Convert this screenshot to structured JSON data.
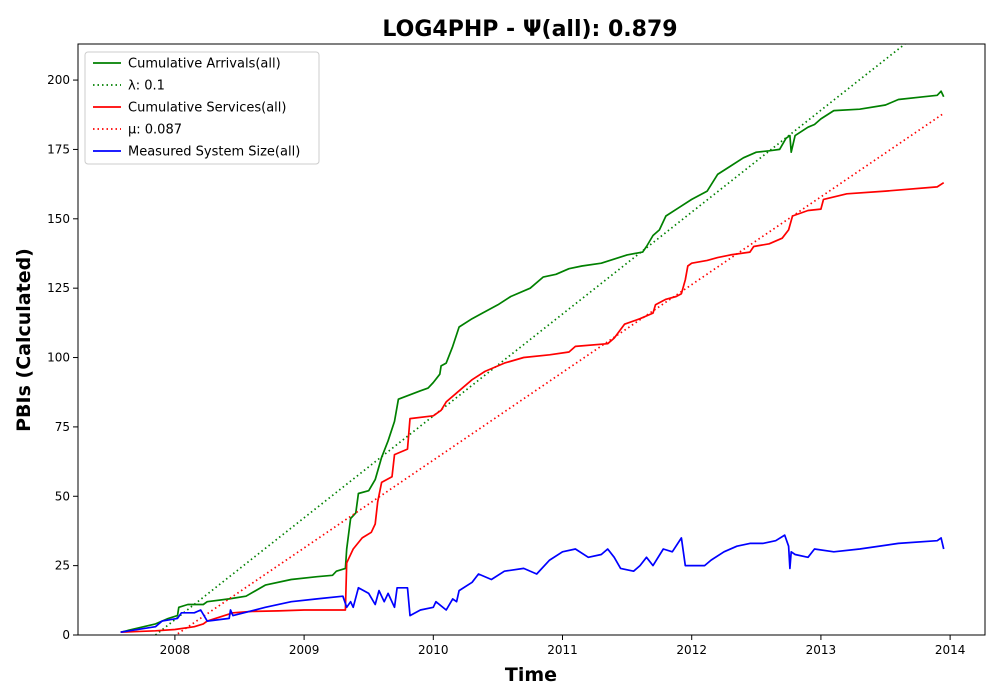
{
  "chart_data": {
    "type": "line",
    "title": "LOG4PHP -  Ψ(all): 0.879",
    "xlabel": "Time",
    "ylabel": "PBIs (Calculated)",
    "xlim": [
      2007.25,
      2014.27
    ],
    "ylim": [
      0,
      213
    ],
    "x_ticks": [
      {
        "value": 2008,
        "label": "2008"
      },
      {
        "value": 2009,
        "label": "2009"
      },
      {
        "value": 2010,
        "label": "2010"
      },
      {
        "value": 2011,
        "label": "2011"
      },
      {
        "value": 2012,
        "label": "2012"
      },
      {
        "value": 2013,
        "label": "2013"
      },
      {
        "value": 2014,
        "label": "2014"
      }
    ],
    "y_ticks": [
      {
        "value": 0,
        "label": "0"
      },
      {
        "value": 25,
        "label": "25"
      },
      {
        "value": 50,
        "label": "50"
      },
      {
        "value": 75,
        "label": "75"
      },
      {
        "value": 100,
        "label": "100"
      },
      {
        "value": 125,
        "label": "125"
      },
      {
        "value": 150,
        "label": "150"
      },
      {
        "value": 175,
        "label": "175"
      },
      {
        "value": 200,
        "label": "200"
      }
    ],
    "grid": false,
    "legend_position": "top-left",
    "series": [
      {
        "name": "Cumulative Arrivals(all)",
        "color": "#008000",
        "style": "solid",
        "points": [
          [
            2007.58,
            1
          ],
          [
            2007.85,
            4
          ],
          [
            2007.95,
            6
          ],
          [
            2008.02,
            7
          ],
          [
            2008.03,
            10
          ],
          [
            2008.1,
            11
          ],
          [
            2008.22,
            11
          ],
          [
            2008.25,
            12
          ],
          [
            2008.42,
            13
          ],
          [
            2008.55,
            14
          ],
          [
            2008.7,
            18
          ],
          [
            2008.9,
            20
          ],
          [
            2009.1,
            21
          ],
          [
            2009.22,
            21.5
          ],
          [
            2009.25,
            23
          ],
          [
            2009.32,
            24
          ],
          [
            2009.33,
            31
          ],
          [
            2009.36,
            42
          ],
          [
            2009.4,
            44
          ],
          [
            2009.42,
            51
          ],
          [
            2009.5,
            52
          ],
          [
            2009.55,
            56
          ],
          [
            2009.6,
            64
          ],
          [
            2009.65,
            70
          ],
          [
            2009.7,
            77
          ],
          [
            2009.73,
            85
          ],
          [
            2009.9,
            88
          ],
          [
            2009.96,
            89
          ],
          [
            2010.0,
            91
          ],
          [
            2010.05,
            94
          ],
          [
            2010.06,
            97
          ],
          [
            2010.1,
            98
          ],
          [
            2010.15,
            104
          ],
          [
            2010.2,
            111
          ],
          [
            2010.3,
            114
          ],
          [
            2010.38,
            116
          ],
          [
            2010.5,
            119
          ],
          [
            2010.6,
            122
          ],
          [
            2010.75,
            125
          ],
          [
            2010.85,
            129
          ],
          [
            2010.95,
            130
          ],
          [
            2011.05,
            132
          ],
          [
            2011.15,
            133
          ],
          [
            2011.3,
            134
          ],
          [
            2011.5,
            137
          ],
          [
            2011.62,
            138
          ],
          [
            2011.65,
            140
          ],
          [
            2011.7,
            144
          ],
          [
            2011.75,
            146
          ],
          [
            2011.8,
            151
          ],
          [
            2011.9,
            154
          ],
          [
            2012.0,
            157
          ],
          [
            2012.12,
            160
          ],
          [
            2012.2,
            166
          ],
          [
            2012.3,
            169
          ],
          [
            2012.4,
            172
          ],
          [
            2012.5,
            174
          ],
          [
            2012.6,
            174.5
          ],
          [
            2012.68,
            175
          ],
          [
            2012.73,
            179
          ],
          [
            2012.76,
            180
          ],
          [
            2012.77,
            174
          ],
          [
            2012.8,
            180
          ],
          [
            2012.9,
            183
          ],
          [
            2012.95,
            184
          ],
          [
            2013.0,
            186
          ],
          [
            2013.1,
            189
          ],
          [
            2013.3,
            189.5
          ],
          [
            2013.5,
            191
          ],
          [
            2013.6,
            193
          ],
          [
            2013.8,
            194
          ],
          [
            2013.9,
            194.5
          ],
          [
            2013.93,
            196
          ],
          [
            2013.95,
            194
          ]
        ]
      },
      {
        "name": "λ: 0.1",
        "color": "#008000",
        "style": "dotted",
        "points": [
          [
            2007.85,
            0
          ],
          [
            2013.65,
            213
          ]
        ]
      },
      {
        "name": "Cumulative Services(all)",
        "color": "#ff0000",
        "style": "solid",
        "points": [
          [
            2007.58,
            1
          ],
          [
            2007.85,
            1.5
          ],
          [
            2008.0,
            2
          ],
          [
            2008.15,
            3
          ],
          [
            2008.22,
            4
          ],
          [
            2008.25,
            5
          ],
          [
            2008.45,
            8
          ],
          [
            2008.6,
            8.5
          ],
          [
            2008.8,
            8.7
          ],
          [
            2009.0,
            9
          ],
          [
            2009.1,
            9
          ],
          [
            2009.32,
            9
          ],
          [
            2009.33,
            26
          ],
          [
            2009.35,
            28
          ],
          [
            2009.38,
            31
          ],
          [
            2009.45,
            35
          ],
          [
            2009.52,
            37
          ],
          [
            2009.55,
            40
          ],
          [
            2009.57,
            48
          ],
          [
            2009.6,
            55
          ],
          [
            2009.68,
            57
          ],
          [
            2009.7,
            65
          ],
          [
            2009.8,
            67
          ],
          [
            2009.82,
            78
          ],
          [
            2010.0,
            79
          ],
          [
            2010.06,
            81
          ],
          [
            2010.1,
            84
          ],
          [
            2010.2,
            88
          ],
          [
            2010.3,
            92
          ],
          [
            2010.4,
            95
          ],
          [
            2010.55,
            98
          ],
          [
            2010.7,
            100
          ],
          [
            2010.9,
            101
          ],
          [
            2011.05,
            102
          ],
          [
            2011.1,
            104
          ],
          [
            2011.35,
            105
          ],
          [
            2011.4,
            107
          ],
          [
            2011.48,
            112
          ],
          [
            2011.6,
            114
          ],
          [
            2011.7,
            116
          ],
          [
            2011.72,
            119
          ],
          [
            2011.8,
            121
          ],
          [
            2011.88,
            122
          ],
          [
            2011.92,
            123
          ],
          [
            2011.95,
            128
          ],
          [
            2011.97,
            133
          ],
          [
            2012.0,
            134
          ],
          [
            2012.12,
            135
          ],
          [
            2012.2,
            136
          ],
          [
            2012.3,
            137
          ],
          [
            2012.45,
            138
          ],
          [
            2012.48,
            140
          ],
          [
            2012.6,
            141
          ],
          [
            2012.7,
            143
          ],
          [
            2012.75,
            146
          ],
          [
            2012.78,
            151
          ],
          [
            2012.9,
            153
          ],
          [
            2013.0,
            153.5
          ],
          [
            2013.02,
            157
          ],
          [
            2013.2,
            159
          ],
          [
            2013.5,
            160
          ],
          [
            2013.9,
            161.5
          ],
          [
            2013.95,
            163
          ]
        ]
      },
      {
        "name": "μ: 0.087",
        "color": "#ff0000",
        "style": "dotted",
        "points": [
          [
            2007.85,
            -5
          ],
          [
            2013.95,
            188
          ]
        ]
      },
      {
        "name": "Measured System Size(all)",
        "color": "#0000ff",
        "style": "solid",
        "points": [
          [
            2007.58,
            1
          ],
          [
            2007.85,
            3
          ],
          [
            2007.9,
            5
          ],
          [
            2008.02,
            6
          ],
          [
            2008.05,
            8
          ],
          [
            2008.15,
            8
          ],
          [
            2008.2,
            9
          ],
          [
            2008.25,
            5
          ],
          [
            2008.42,
            6
          ],
          [
            2008.43,
            9
          ],
          [
            2008.45,
            7
          ],
          [
            2008.7,
            10
          ],
          [
            2008.9,
            12
          ],
          [
            2009.1,
            13
          ],
          [
            2009.3,
            14
          ],
          [
            2009.33,
            10
          ],
          [
            2009.36,
            12
          ],
          [
            2009.38,
            10
          ],
          [
            2009.42,
            17
          ],
          [
            2009.5,
            15
          ],
          [
            2009.55,
            11
          ],
          [
            2009.58,
            16
          ],
          [
            2009.62,
            12
          ],
          [
            2009.65,
            15
          ],
          [
            2009.7,
            10
          ],
          [
            2009.72,
            17
          ],
          [
            2009.8,
            17
          ],
          [
            2009.82,
            7
          ],
          [
            2009.9,
            9
          ],
          [
            2010.0,
            10
          ],
          [
            2010.02,
            12
          ],
          [
            2010.1,
            9
          ],
          [
            2010.15,
            13
          ],
          [
            2010.18,
            12
          ],
          [
            2010.2,
            16
          ],
          [
            2010.3,
            19
          ],
          [
            2010.35,
            22
          ],
          [
            2010.45,
            20
          ],
          [
            2010.55,
            23
          ],
          [
            2010.7,
            24
          ],
          [
            2010.8,
            22
          ],
          [
            2010.9,
            27
          ],
          [
            2011.0,
            30
          ],
          [
            2011.1,
            31
          ],
          [
            2011.2,
            28
          ],
          [
            2011.3,
            29
          ],
          [
            2011.35,
            31
          ],
          [
            2011.4,
            28
          ],
          [
            2011.45,
            24
          ],
          [
            2011.55,
            23
          ],
          [
            2011.6,
            25
          ],
          [
            2011.65,
            28
          ],
          [
            2011.7,
            25
          ],
          [
            2011.78,
            31
          ],
          [
            2011.85,
            30
          ],
          [
            2011.92,
            35
          ],
          [
            2011.95,
            25
          ],
          [
            2012.1,
            25
          ],
          [
            2012.15,
            27
          ],
          [
            2012.25,
            30
          ],
          [
            2012.35,
            32
          ],
          [
            2012.45,
            33
          ],
          [
            2012.55,
            33
          ],
          [
            2012.65,
            34
          ],
          [
            2012.72,
            36
          ],
          [
            2012.75,
            32
          ],
          [
            2012.76,
            24
          ],
          [
            2012.77,
            30
          ],
          [
            2012.8,
            29
          ],
          [
            2012.9,
            28
          ],
          [
            2012.95,
            31
          ],
          [
            2013.1,
            30
          ],
          [
            2013.3,
            31
          ],
          [
            2013.6,
            33
          ],
          [
            2013.9,
            34
          ],
          [
            2013.93,
            35
          ],
          [
            2013.95,
            31
          ]
        ]
      }
    ]
  }
}
